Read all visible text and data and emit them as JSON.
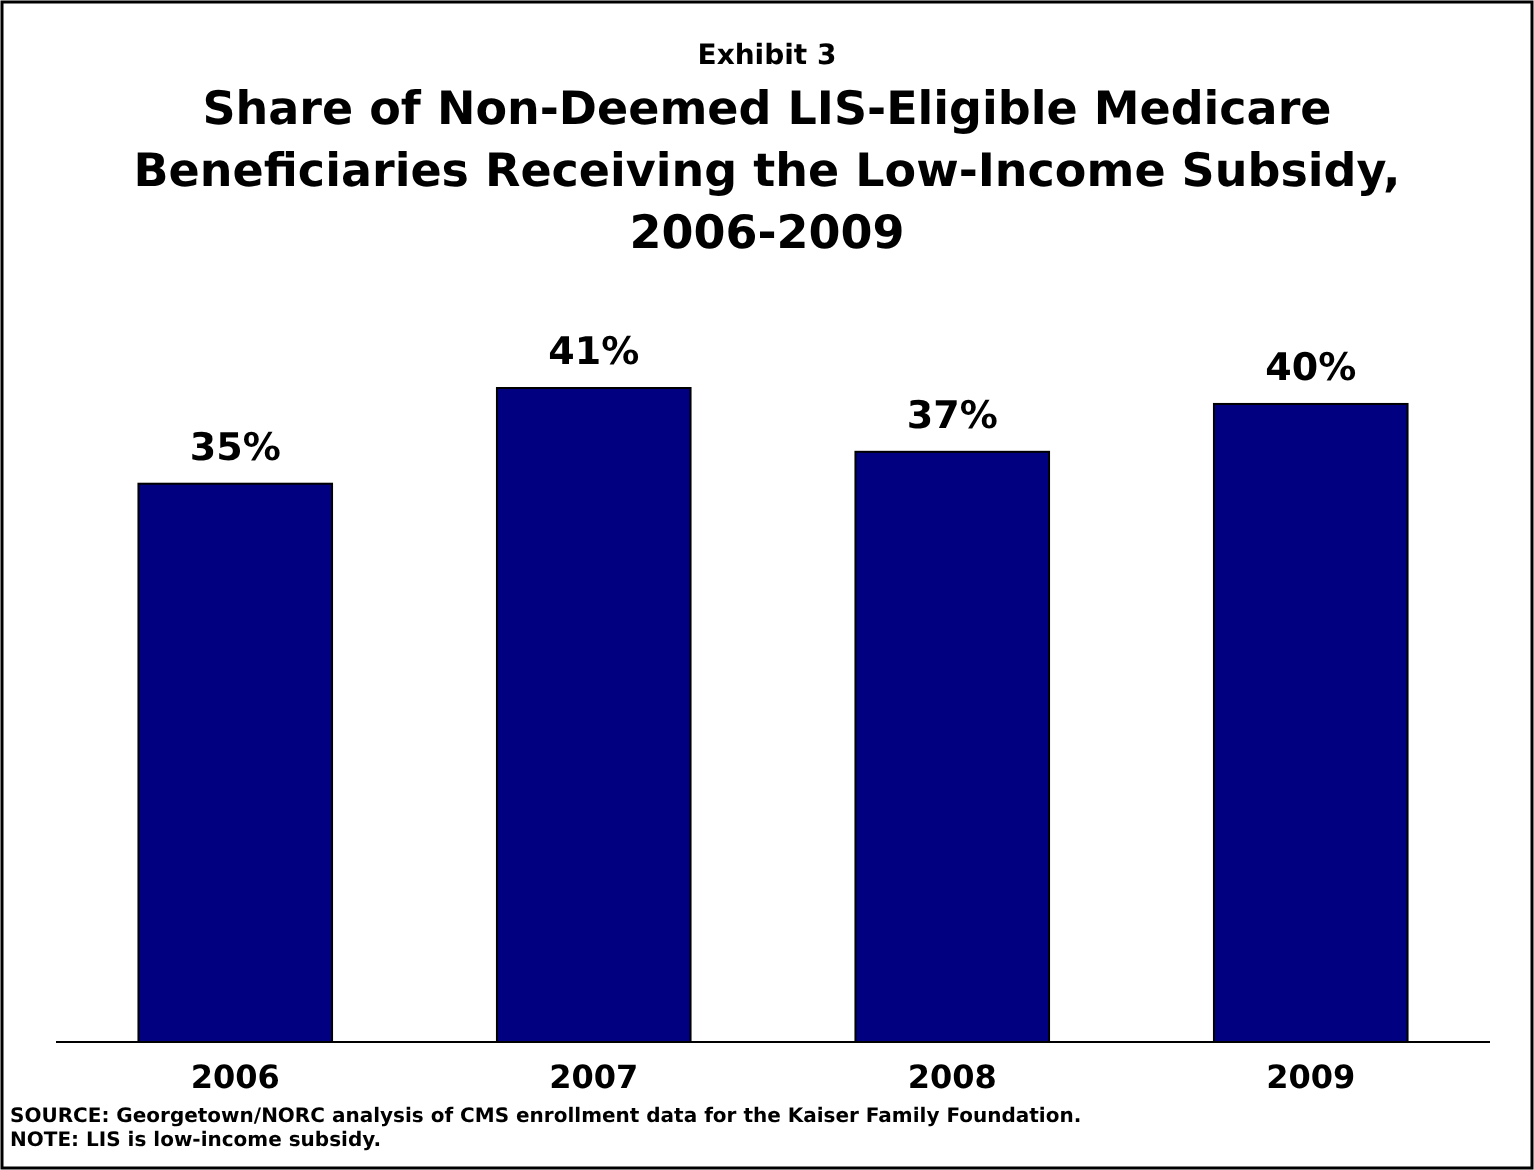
{
  "chart_data": {
    "type": "bar",
    "subtitle": "Exhibit 3",
    "title": "Share of Non-Deemed LIS-Eligible Medicare Beneficiaries Receiving the Low-Income Subsidy, 2006-2009",
    "categories": [
      "2006",
      "2007",
      "2008",
      "2009"
    ],
    "values": [
      35,
      41,
      37,
      40
    ],
    "color": "#000080",
    "value_labels": [
      "35%",
      "41%",
      "37%",
      "40%"
    ],
    "annotations": [
      "SOURCE: Georgetown/NORC analysis of CMS enrollment data for the Kaiser Family Foundation.",
      "NOTE: LIS is low-income subsidy."
    ]
  }
}
